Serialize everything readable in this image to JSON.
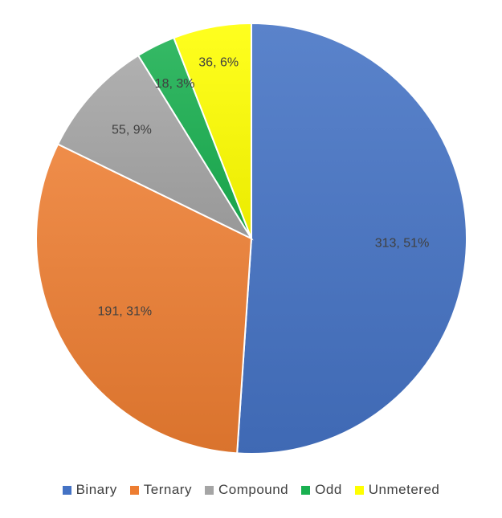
{
  "chart_data": {
    "type": "pie",
    "title": "",
    "legend_position": "bottom",
    "slices": [
      {
        "name": "Binary",
        "value": 313,
        "percent": 51,
        "label": "313, 51%",
        "color": "#4472C4"
      },
      {
        "name": "Ternary",
        "value": 191,
        "percent": 31,
        "label": "191, 31%",
        "color": "#ED7D31"
      },
      {
        "name": "Compound",
        "value": 55,
        "percent": 9,
        "label": "55, 9%",
        "color": "#A5A5A5"
      },
      {
        "name": "Odd",
        "value": 18,
        "percent": 3,
        "label": "18, 3%",
        "color": "#19B050"
      },
      {
        "name": "Unmetered",
        "value": 36,
        "percent": 6,
        "label": "36, 6%",
        "color": "#FFFF00"
      }
    ]
  }
}
